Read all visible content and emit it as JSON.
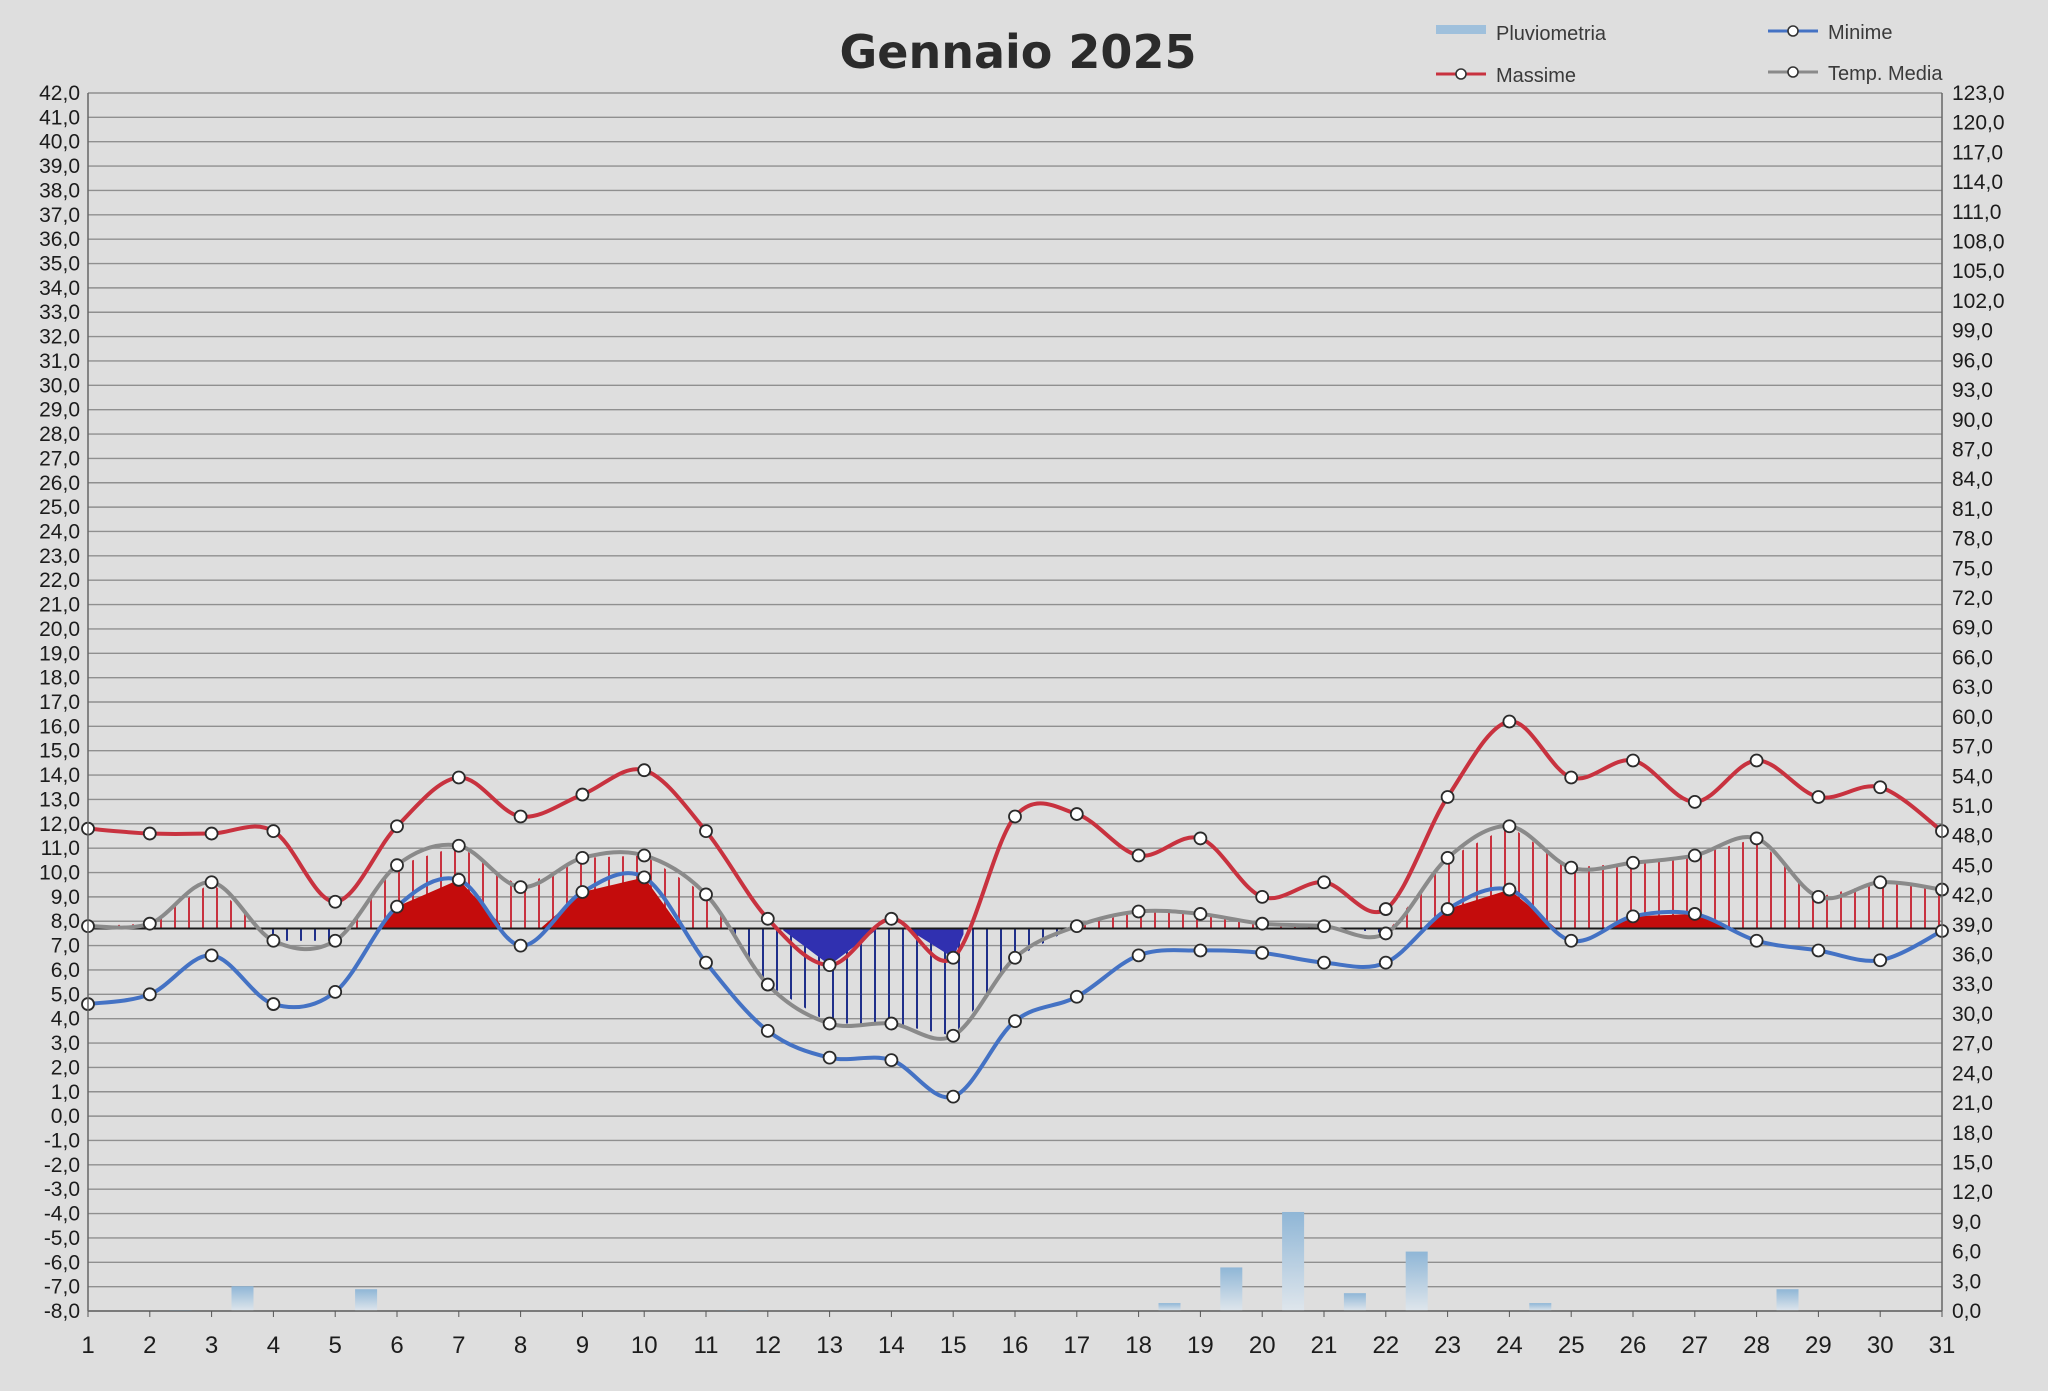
{
  "chart_data": {
    "type": "line",
    "title": "Gennaio 2025",
    "x": [
      1,
      2,
      3,
      4,
      5,
      6,
      7,
      8,
      9,
      10,
      11,
      12,
      13,
      14,
      15,
      16,
      17,
      18,
      19,
      20,
      21,
      22,
      23,
      24,
      25,
      26,
      27,
      28,
      29,
      30,
      31
    ],
    "x_tick_labels": [
      "1",
      "2",
      "3",
      "4",
      "5",
      "6",
      "7",
      "8",
      "9",
      "10",
      "11",
      "12",
      "13",
      "14",
      "15",
      "16",
      "17",
      "18",
      "19",
      "20",
      "21",
      "22",
      "23",
      "24",
      "25",
      "26",
      "27",
      "28",
      "29",
      "30",
      "31"
    ],
    "y_left": {
      "min": -8,
      "max": 42,
      "step": 1
    },
    "y_right": {
      "min": 0,
      "max": 123,
      "step": 3
    },
    "reference_line_value": 7.7,
    "grid": true,
    "legend": {
      "placement": "top-right",
      "items": [
        {
          "label": "Pluviometria",
          "color": "#9fc0dc"
        },
        {
          "label": "Minime",
          "color": "#4472c4"
        },
        {
          "label": "Massime",
          "color": "#c8323f"
        },
        {
          "label": "Temp. Media",
          "color": "#8a8a8a"
        }
      ]
    },
    "series": [
      {
        "name": "Massime",
        "color": "#c8323f",
        "axis": "left",
        "values": [
          11.8,
          11.6,
          11.6,
          11.7,
          8.8,
          11.9,
          13.9,
          12.3,
          13.2,
          14.2,
          11.7,
          8.1,
          6.2,
          8.1,
          6.5,
          12.3,
          12.4,
          10.7,
          11.4,
          9.0,
          9.6,
          8.5,
          13.1,
          16.2,
          13.9,
          14.6,
          12.9,
          14.6,
          13.1,
          13.5,
          11.7
        ]
      },
      {
        "name": "Temp. Media",
        "color": "#8a8a8a",
        "axis": "left",
        "values": [
          7.8,
          7.9,
          9.6,
          7.2,
          7.2,
          10.3,
          11.1,
          9.4,
          10.6,
          10.7,
          9.1,
          5.4,
          3.8,
          3.8,
          3.3,
          6.5,
          7.8,
          8.4,
          8.3,
          7.9,
          7.8,
          7.5,
          10.6,
          11.9,
          10.2,
          10.4,
          10.7,
          11.4,
          9.0,
          9.6,
          9.3
        ]
      },
      {
        "name": "Minime",
        "color": "#4472c4",
        "axis": "left",
        "values": [
          4.6,
          5.0,
          6.6,
          4.6,
          5.1,
          8.6,
          9.7,
          7.0,
          9.2,
          9.8,
          6.3,
          3.5,
          2.4,
          2.3,
          0.8,
          3.9,
          4.9,
          6.6,
          6.8,
          6.7,
          6.3,
          6.3,
          8.5,
          9.3,
          7.2,
          8.2,
          8.3,
          7.2,
          6.8,
          6.4,
          7.6
        ]
      },
      {
        "name": "Pluviometria",
        "color": "#9fc0dc",
        "axis": "right",
        "type": "bar",
        "values": [
          0,
          0.1,
          2.5,
          0,
          2.2,
          0,
          0,
          0,
          0,
          0,
          0.1,
          0,
          0,
          0,
          0,
          0,
          0,
          0.8,
          4.4,
          10.0,
          1.8,
          6.0,
          0,
          0.8,
          0,
          0,
          0,
          2.2,
          0,
          0,
          0
        ]
      }
    ]
  }
}
